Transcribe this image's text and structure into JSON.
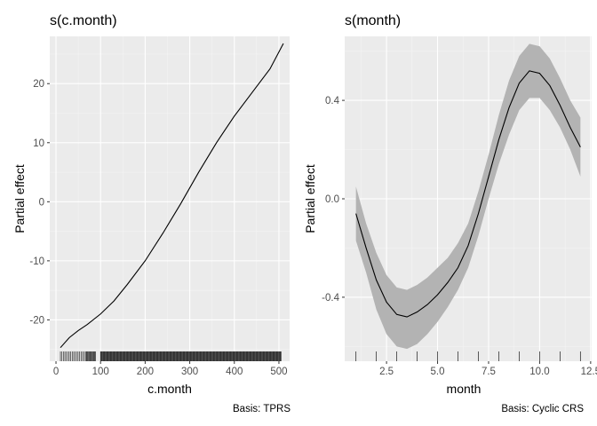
{
  "chart_data": [
    {
      "type": "line",
      "title": "s(c.month)",
      "xlabel": "c.month",
      "ylabel": "Partial effect",
      "caption": "Basis: TPRS",
      "xlim": [
        -14,
        524
      ],
      "ylim": [
        -27,
        28
      ],
      "xticks": [
        0,
        100,
        200,
        300,
        400,
        500
      ],
      "xtick_labels": [
        "0",
        "100",
        "200",
        "300",
        "400",
        "500"
      ],
      "yticks": [
        -20,
        -10,
        0,
        10,
        20
      ],
      "ytick_labels": [
        "-20",
        "-10",
        "0",
        "10",
        "20"
      ],
      "x": [
        10,
        30,
        50,
        70,
        100,
        130,
        160,
        200,
        240,
        280,
        320,
        360,
        400,
        440,
        480,
        510
      ],
      "y": [
        -24.7,
        -23.0,
        -21.8,
        -20.8,
        -19.0,
        -16.8,
        -14.0,
        -10.0,
        -5.3,
        -0.3,
        5.0,
        10.0,
        14.5,
        18.5,
        22.5,
        26.8
      ],
      "rug_ranges": [
        [
          10,
          68
        ],
        [
          68,
          90
        ],
        [
          100,
          505
        ]
      ]
    },
    {
      "type": "line",
      "title": "s(month)",
      "xlabel": "month",
      "ylabel": "Partial effect",
      "caption": "Basis: Cyclic CRS",
      "xlim": [
        0.45,
        12.55
      ],
      "ylim": [
        -0.66,
        0.66
      ],
      "xticks": [
        2.5,
        5.0,
        7.5,
        10.0,
        12.5
      ],
      "xtick_labels": [
        "2.5",
        "5.0",
        "7.5",
        "10.0",
        "12.5"
      ],
      "yticks": [
        -0.4,
        0.0,
        0.4
      ],
      "ytick_labels": [
        "-0.4",
        "0.0",
        "0.4"
      ],
      "x": [
        1,
        1.5,
        2,
        2.5,
        3,
        3.5,
        4,
        4.5,
        5,
        5.5,
        6,
        6.5,
        7,
        7.5,
        8,
        8.5,
        9,
        9.5,
        10,
        10.5,
        11,
        11.5,
        12
      ],
      "y": [
        -0.06,
        -0.2,
        -0.33,
        -0.42,
        -0.47,
        -0.48,
        -0.46,
        -0.43,
        -0.39,
        -0.34,
        -0.28,
        -0.19,
        -0.06,
        0.09,
        0.24,
        0.37,
        0.47,
        0.52,
        0.51,
        0.46,
        0.38,
        0.29,
        0.21
      ],
      "lower": [
        -0.17,
        -0.3,
        -0.45,
        -0.55,
        -0.6,
        -0.61,
        -0.59,
        -0.55,
        -0.5,
        -0.44,
        -0.37,
        -0.28,
        -0.15,
        0.0,
        0.14,
        0.26,
        0.36,
        0.41,
        0.41,
        0.36,
        0.29,
        0.2,
        0.09
      ],
      "upper": [
        0.05,
        -0.1,
        -0.22,
        -0.31,
        -0.36,
        -0.37,
        -0.35,
        -0.32,
        -0.28,
        -0.24,
        -0.18,
        -0.1,
        0.03,
        0.18,
        0.34,
        0.48,
        0.58,
        0.63,
        0.62,
        0.57,
        0.49,
        0.4,
        0.33
      ],
      "rug": [
        1,
        2,
        3,
        4,
        5,
        6,
        7,
        8,
        9,
        10,
        11,
        12
      ]
    }
  ]
}
